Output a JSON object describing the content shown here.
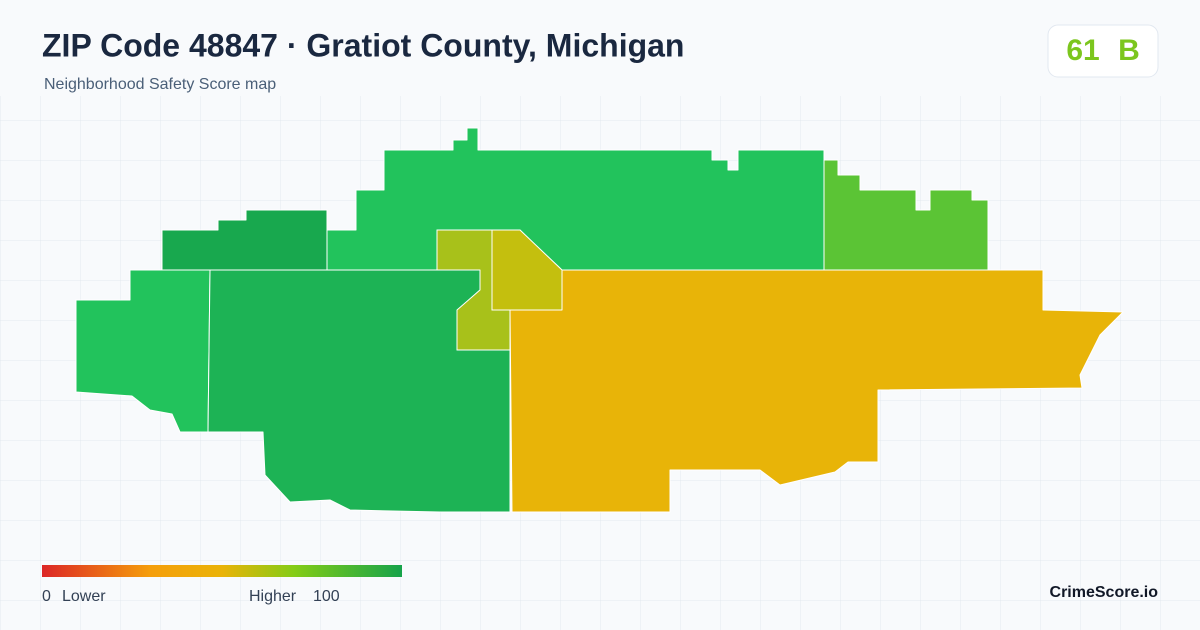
{
  "header": {
    "title": "ZIP Code 48847 · Gratiot County, Michigan",
    "subtitle": "Neighborhood Safety Score map"
  },
  "badge": {
    "score": "61",
    "grade": "B"
  },
  "legend": {
    "min": "0",
    "min_label": "Lower",
    "max_label": "Higher",
    "max": "100"
  },
  "brand": "CrimeScore.io"
}
